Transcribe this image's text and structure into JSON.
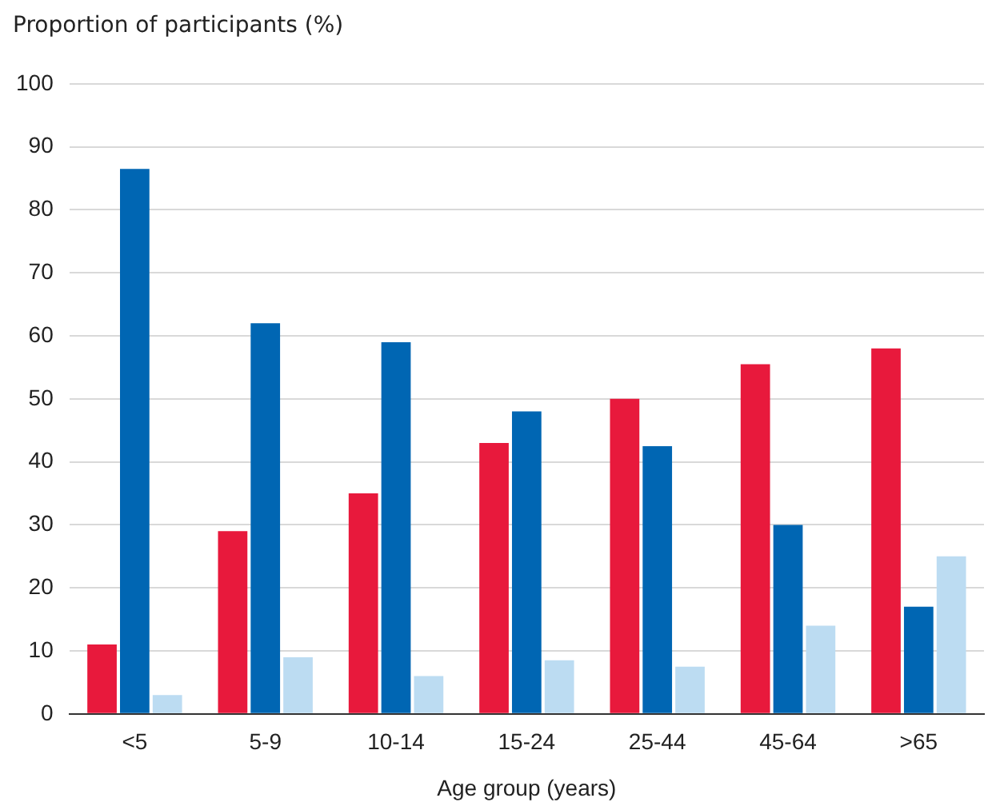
{
  "chart_data": {
    "type": "bar",
    "ylabel": "Proportion of participants (%)",
    "xlabel": "Age group (years)",
    "categories": [
      "<5",
      "5-9",
      "10-14",
      "15-24",
      "25-44",
      "45-64",
      ">65"
    ],
    "series": [
      {
        "color": "#e8193c",
        "values": [
          11,
          29,
          35,
          43,
          50,
          55.5,
          58
        ]
      },
      {
        "color": "#0066b3",
        "values": [
          86.5,
          62,
          59,
          48,
          42.5,
          30,
          17
        ]
      },
      {
        "color": "#bcdcf2",
        "values": [
          3,
          9,
          6,
          8.5,
          7.5,
          14,
          25
        ]
      }
    ],
    "ylim": [
      0,
      100
    ],
    "yticks": [
      0,
      10,
      20,
      30,
      40,
      50,
      60,
      70,
      80,
      90,
      100
    ],
    "grid": "y",
    "legend": false
  }
}
